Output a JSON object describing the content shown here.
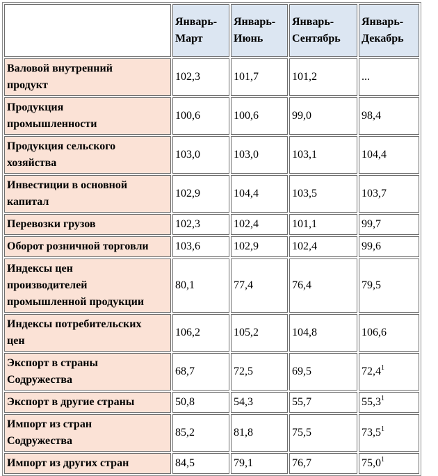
{
  "header": {
    "cols": [
      {
        "l1": "Январь-",
        "l2": "Март"
      },
      {
        "l1": "Январь-",
        "l2": "Июнь"
      },
      {
        "l1": "Январь-",
        "l2": "Сентябрь"
      },
      {
        "l1": "Январь-",
        "l2": "Декабрь"
      }
    ]
  },
  "rows": [
    {
      "l1": "Валовой внутренний",
      "l2": "продукт",
      "v": [
        "102,3",
        "101,7",
        "101,2",
        "..."
      ]
    },
    {
      "l1": "Продукция",
      "l2": "промышленности",
      "v": [
        "100,6",
        "100,6",
        "99,0",
        "98,4"
      ]
    },
    {
      "l1": "Продукция сельского",
      "l2": "хозяйства",
      "v": [
        "103,0",
        "103,0",
        "103,1",
        "104,4"
      ]
    },
    {
      "l1": "Инвестиции в основной",
      "l2": "капитал",
      "v": [
        "102,9",
        "104,4",
        "103,5",
        "103,7"
      ]
    },
    {
      "l1": "Перевозки грузов",
      "v": [
        "102,3",
        "102,4",
        "101,1",
        "99,7"
      ]
    },
    {
      "l1": "Оборот розничной торговли",
      "v": [
        "103,6",
        "102,9",
        "102,4",
        "99,6"
      ]
    },
    {
      "l1": "Индексы цен",
      "l2": "производителей",
      "l3": "промышленной продукции",
      "v": [
        "80,1",
        "77,4",
        "76,4",
        "79,5"
      ]
    },
    {
      "l1": "Индексы потребительских",
      "l2": "цен",
      "v": [
        "106,2",
        "105,2",
        "104,8",
        "106,6"
      ]
    },
    {
      "l1": "Экспорт в страны",
      "l2": "Содружества",
      "v": [
        "68,7",
        "72,5",
        "69,5",
        "72,4"
      ],
      "sup": "1"
    },
    {
      "l1": "Экспорт в другие страны",
      "v": [
        "50,8",
        "54,3",
        "55,7",
        "55,3"
      ],
      "sup": "1"
    },
    {
      "l1": "Импорт из стран",
      "l2": "Содружества",
      "v": [
        "85,2",
        "81,8",
        "75,5",
        "73,5"
      ],
      "sup": "1"
    },
    {
      "l1": "Импорт из других стран",
      "v": [
        "84,5",
        "79,1",
        "76,7",
        "75,0"
      ],
      "sup": "1"
    }
  ]
}
